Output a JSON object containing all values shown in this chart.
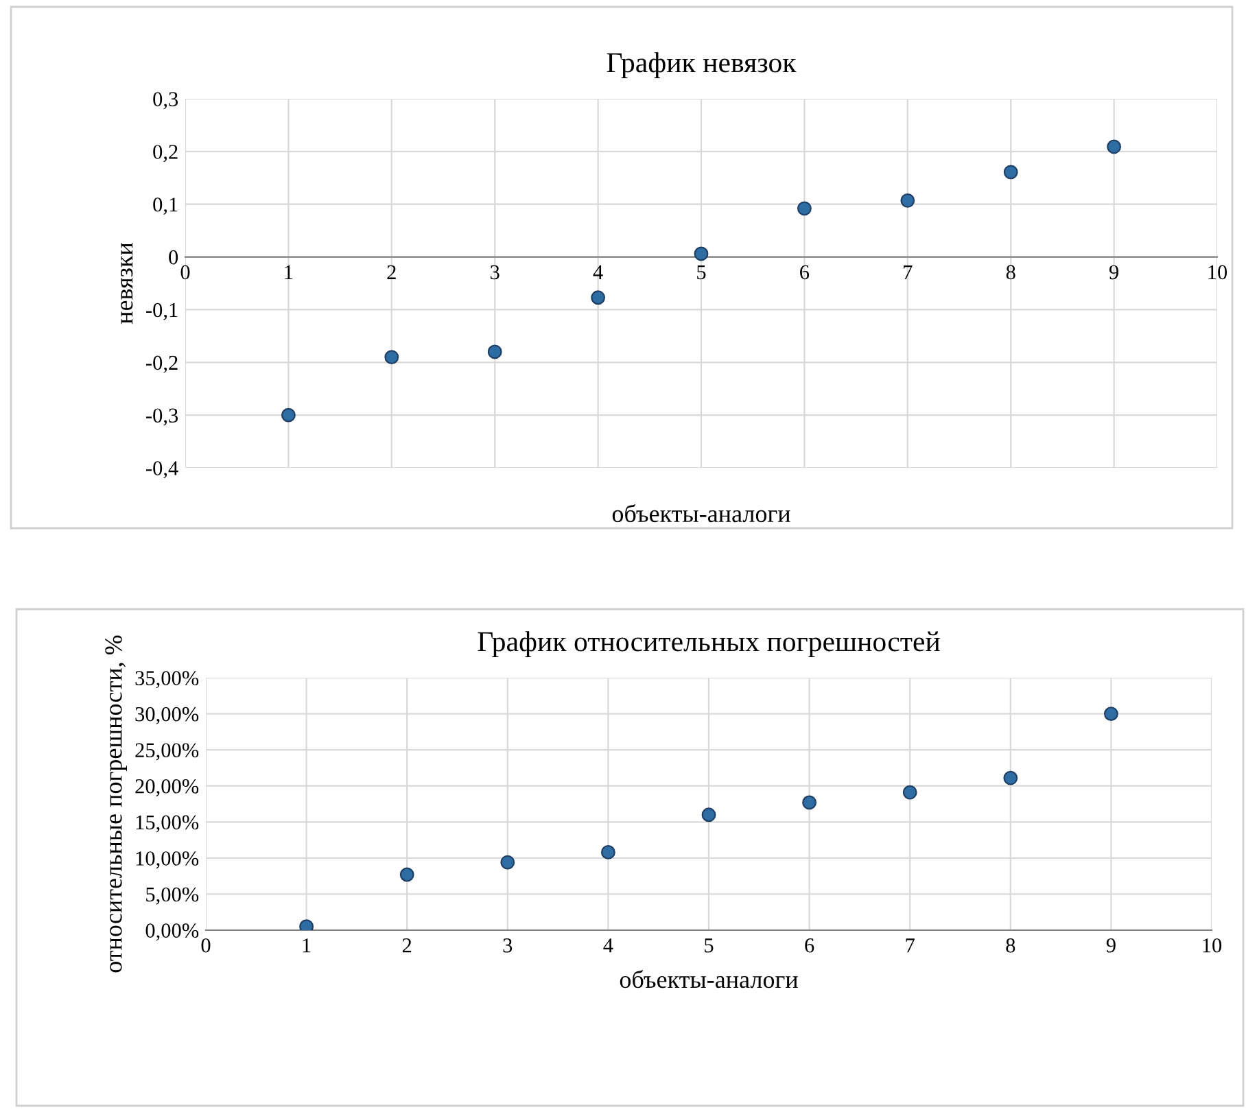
{
  "chart_data": [
    {
      "type": "scatter",
      "title": "График невязок",
      "xlabel": "объекты-аналоги",
      "ylabel": "невязки",
      "x": [
        1,
        2,
        3,
        4,
        5,
        6,
        7,
        8,
        9
      ],
      "series": [
        {
          "color": "#2e6da4",
          "values": [
            -0.3,
            -0.19,
            -0.18,
            -0.077,
            0.006,
            0.092,
            0.107,
            0.161,
            0.209
          ]
        }
      ],
      "xlim": [
        0,
        10
      ],
      "xticks": [
        0,
        1,
        2,
        3,
        4,
        5,
        6,
        7,
        8,
        9,
        10
      ],
      "ylim": [
        -0.4,
        0.3
      ],
      "yticks": [
        {
          "value": -0.4,
          "label": "-0,4"
        },
        {
          "value": -0.3,
          "label": "-0,3"
        },
        {
          "value": -0.2,
          "label": "-0,2"
        },
        {
          "value": -0.1,
          "label": "-0,1"
        },
        0,
        {
          "value": 0.1,
          "label": "0,1"
        },
        {
          "value": 0.2,
          "label": "0,2"
        },
        {
          "value": 0.3,
          "label": "0,3"
        }
      ],
      "grid": true,
      "marker": "circle",
      "legend": false
    },
    {
      "type": "scatter",
      "title": "График относительных погрешностей",
      "xlabel": "объекты-аналоги",
      "ylabel": "относительные погрешности, %",
      "x": [
        1,
        2,
        3,
        4,
        5,
        6,
        7,
        8,
        9
      ],
      "series": [
        {
          "color": "#2e6da4",
          "values": [
            0.5,
            7.7,
            9.4,
            10.8,
            16.0,
            17.7,
            19.1,
            21.1,
            30.0
          ]
        }
      ],
      "xlim": [
        0,
        10
      ],
      "xticks": [
        0,
        1,
        2,
        3,
        4,
        5,
        6,
        7,
        8,
        9,
        10
      ],
      "ylim": [
        0,
        35
      ],
      "yticks": [
        {
          "value": 0,
          "label": "0,00%"
        },
        {
          "value": 5,
          "label": "5,00%"
        },
        {
          "value": 10,
          "label": "10,00%"
        },
        {
          "value": 15,
          "label": "15,00%"
        },
        {
          "value": 20,
          "label": "20,00%"
        },
        {
          "value": 25,
          "label": "25,00%"
        },
        {
          "value": 30,
          "label": "30,00%"
        },
        {
          "value": 35,
          "label": "35,00%"
        }
      ],
      "grid": true,
      "marker": "circle",
      "legend": false
    }
  ]
}
